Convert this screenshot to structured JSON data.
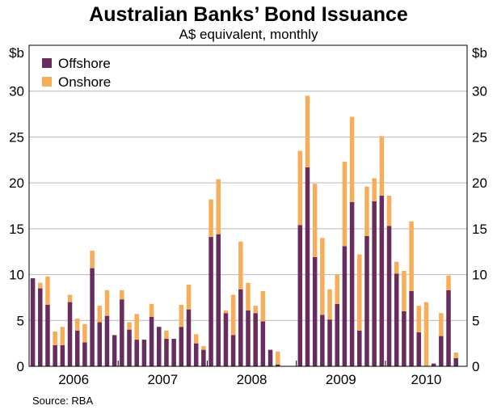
{
  "title": "Australian Banks’ Bond Issuance",
  "subtitle": "A$ equivalent, monthly",
  "source": "Source: RBA",
  "chart_data": {
    "type": "bar",
    "stacked": true,
    "unit_left": "$b",
    "unit_right": "$b",
    "ylim": [
      0,
      35
    ],
    "yticks": [
      0,
      5,
      10,
      15,
      20,
      25,
      30
    ],
    "grid": true,
    "legend_position": "top-left",
    "year_labels": [
      "2006",
      "2007",
      "2008",
      "2009",
      "2010"
    ],
    "year_start_index": [
      0,
      12,
      24,
      36,
      48
    ],
    "series": [
      {
        "name": "Offshore",
        "color": "#662d5e",
        "values": [
          9.6,
          8.5,
          6.7,
          2.3,
          2.3,
          7.0,
          3.9,
          2.6,
          10.7,
          4.8,
          5.5,
          3.4,
          7.3,
          4.0,
          2.9,
          2.9,
          5.4,
          4.3,
          3.0,
          3.0,
          4.3,
          6.2,
          2.5,
          1.8,
          14.1,
          14.4,
          5.8,
          3.4,
          8.4,
          6.1,
          5.8,
          4.9,
          1.8,
          0.2,
          0.0,
          0.0,
          15.4,
          21.7,
          11.9,
          5.6,
          5.1,
          6.8,
          13.1,
          17.9,
          3.9,
          14.2,
          18.0,
          18.6,
          15.3,
          10.1,
          6.0,
          8.2,
          3.7,
          0.0,
          0.3,
          3.3,
          8.3,
          0.9
        ]
      },
      {
        "name": "Onshore",
        "color": "#f7ae5b",
        "values": [
          0.0,
          0.6,
          3.1,
          1.5,
          2.0,
          0.8,
          1.3,
          2.0,
          1.9,
          1.8,
          2.8,
          0.0,
          1.0,
          0.8,
          2.8,
          0.0,
          1.4,
          0.0,
          0.9,
          0.0,
          2.4,
          2.7,
          1.0,
          0.4,
          4.1,
          6.0,
          0.3,
          4.4,
          5.2,
          3.0,
          0.8,
          3.3,
          0.0,
          1.4,
          0.0,
          0.0,
          8.1,
          7.8,
          8.0,
          8.4,
          3.3,
          3.2,
          9.2,
          9.3,
          8.3,
          5.4,
          2.5,
          6.5,
          3.3,
          1.3,
          4.4,
          7.6,
          2.9,
          7.0,
          0.0,
          2.5,
          1.6,
          0.6
        ]
      }
    ]
  }
}
